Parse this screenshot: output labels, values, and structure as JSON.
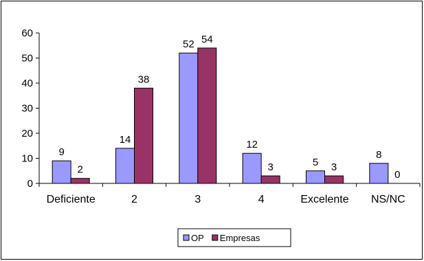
{
  "chart_data": {
    "type": "bar",
    "categories": [
      "Deficiente",
      "2",
      "3",
      "4",
      "Excelente",
      "NS/NC"
    ],
    "series": [
      {
        "name": "OP",
        "values": [
          9,
          14,
          52,
          12,
          5,
          8
        ],
        "color": "#9999ff"
      },
      {
        "name": "Empresas",
        "values": [
          2,
          38,
          54,
          3,
          3,
          0
        ],
        "color": "#993366"
      }
    ],
    "y_ticks": [
      "0",
      "10",
      "20",
      "30",
      "40",
      "50",
      "60"
    ],
    "ylim": [
      0,
      60
    ],
    "grid": false,
    "legend_position": "bottom-center",
    "data_labels": true
  }
}
